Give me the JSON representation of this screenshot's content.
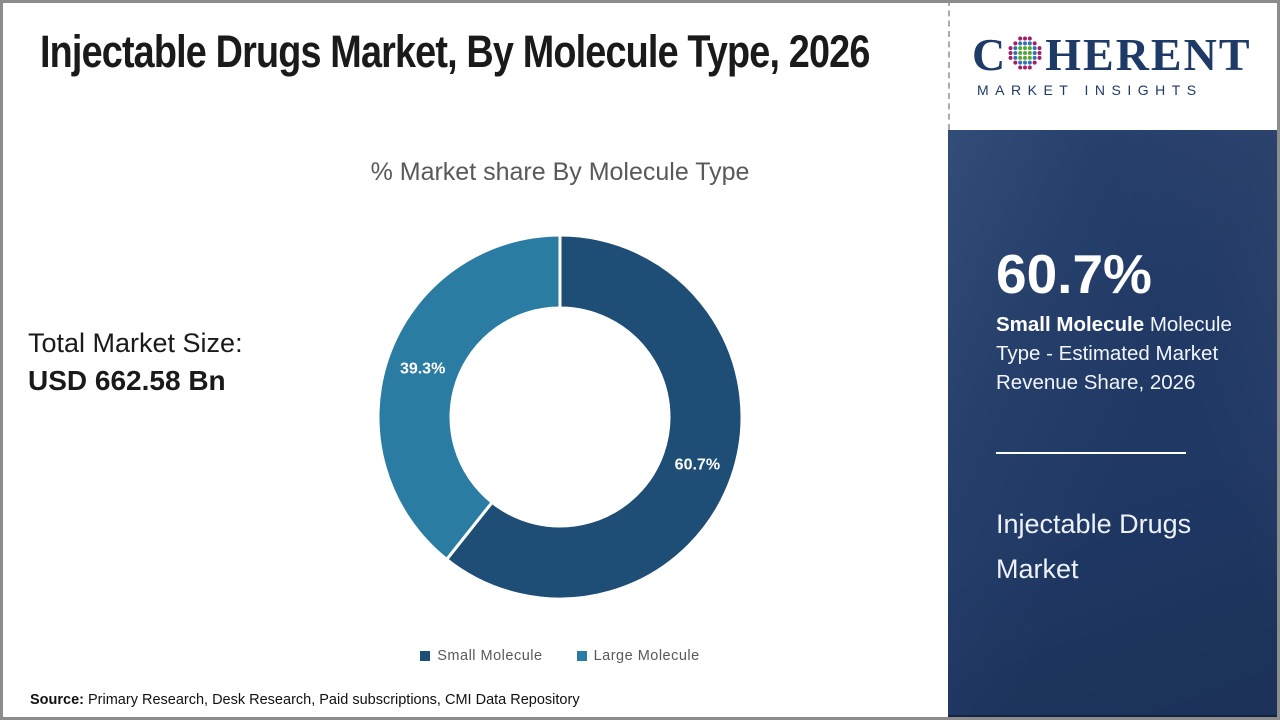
{
  "header": {
    "title": "Injectable Drugs Market, By Molecule Type, 2026"
  },
  "logo": {
    "prefix": "C",
    "suffix": "HERENT",
    "tagline": "MARKET INSIGHTS",
    "globe_icon_colors": {
      "outer": "#a61c66",
      "middle": "#2e74b5",
      "inner": "#56a638"
    },
    "text_color": "#1e3a66"
  },
  "chart_data": {
    "type": "pie",
    "subtype": "donut",
    "title": "% Market share By Molecule Type",
    "categories": [
      "Small Molecule",
      "Large Molecule"
    ],
    "values": [
      60.7,
      39.3
    ],
    "data_labels": [
      "60.7%",
      "39.3%"
    ],
    "colors": [
      "#1e4d75",
      "#2a7ca3"
    ],
    "start_angle_deg": 0,
    "direction": "clockwise",
    "donut_hole_ratio": 0.6,
    "legend_position": "bottom",
    "slice_border_color": "#ffffff"
  },
  "left_panel": {
    "total_market_label": "Total Market Size:",
    "total_market_value": "USD 662.58 Bn"
  },
  "sidebar": {
    "stat_value": "60.7%",
    "stat_segment": "Small Molecule",
    "stat_description": "Molecule Type - Estimated Market Revenue Share, 2026",
    "market_name": "Injectable Drugs Market",
    "background_color": "#1f3864"
  },
  "footer": {
    "source_label": "Source:",
    "source_text": "Primary Research, Desk Research, Paid subscriptions, CMI Data Repository"
  }
}
